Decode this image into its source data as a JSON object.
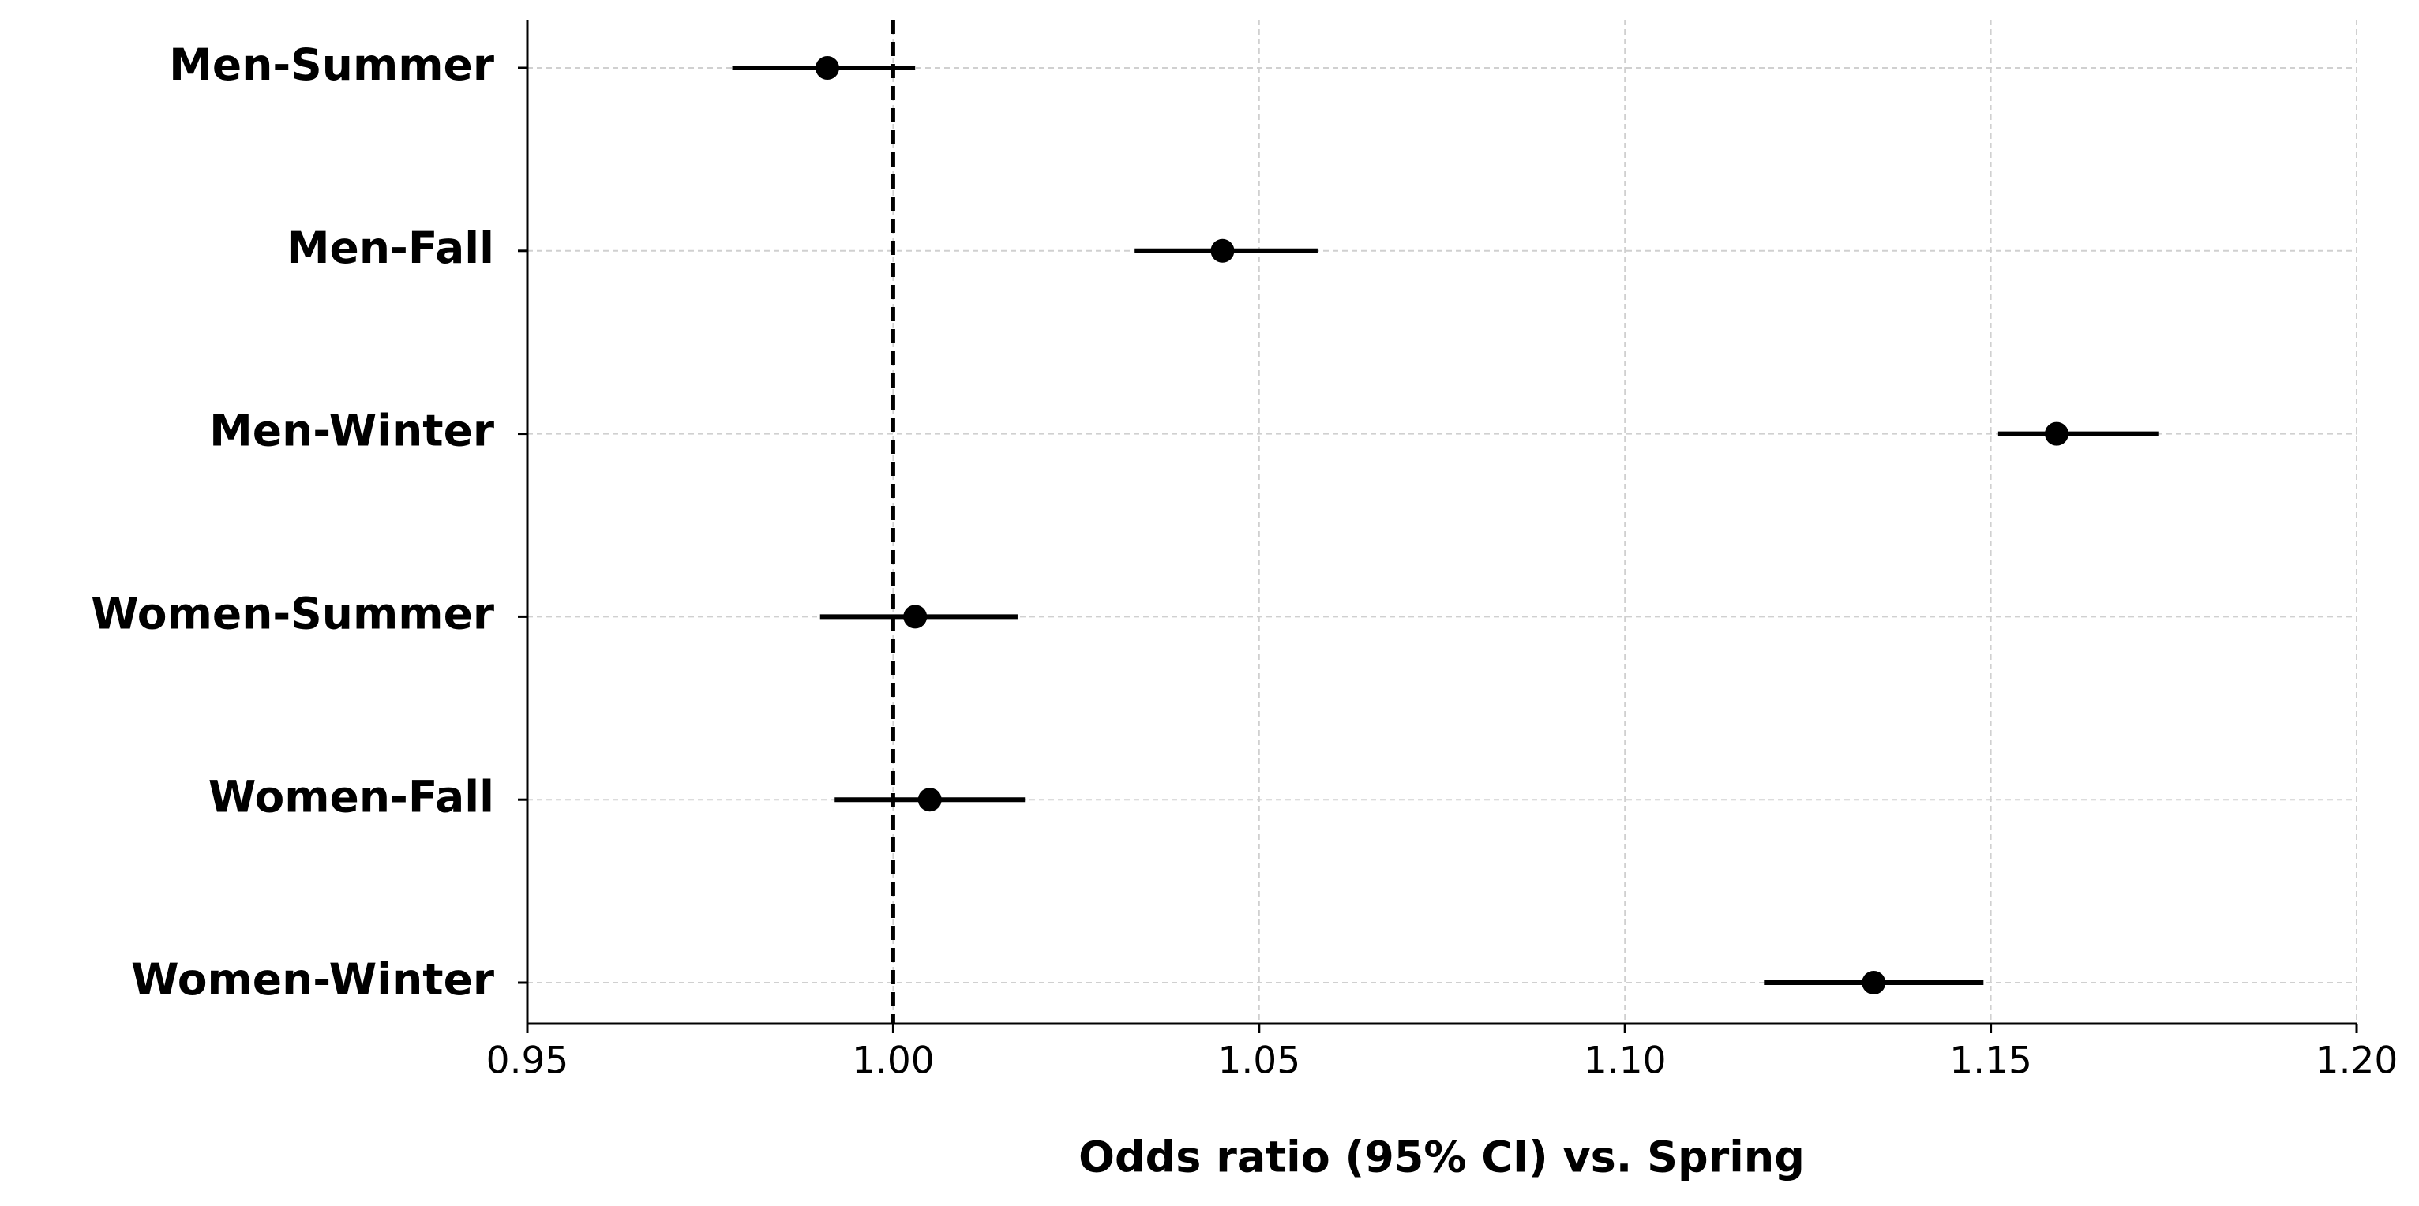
{
  "chart_data": {
    "type": "forest",
    "xlabel": "Odds ratio (95% CI) vs. Spring",
    "categories": [
      "Men-Summer",
      "Men-Fall",
      "Men-Winter",
      "Women-Summer",
      "Women-Fall",
      "Women-Winter"
    ],
    "values": [
      0.991,
      1.045,
      1.159,
      1.003,
      1.005,
      1.134
    ],
    "lower": [
      0.978,
      1.033,
      1.151,
      0.99,
      0.992,
      1.119
    ],
    "upper": [
      1.003,
      1.058,
      1.173,
      1.017,
      1.018,
      1.149
    ],
    "color": "#000000",
    "xlim": [
      0.95,
      1.2
    ],
    "xticks": [
      0.95,
      {
        "value": 1,
        "label": "1.00"
      },
      1.05,
      {
        "value": 1.1,
        "label": "1.10"
      },
      1.15,
      {
        "value": 1.2,
        "label": "1.20"
      }
    ],
    "reference_line": 1,
    "grid": true
  }
}
